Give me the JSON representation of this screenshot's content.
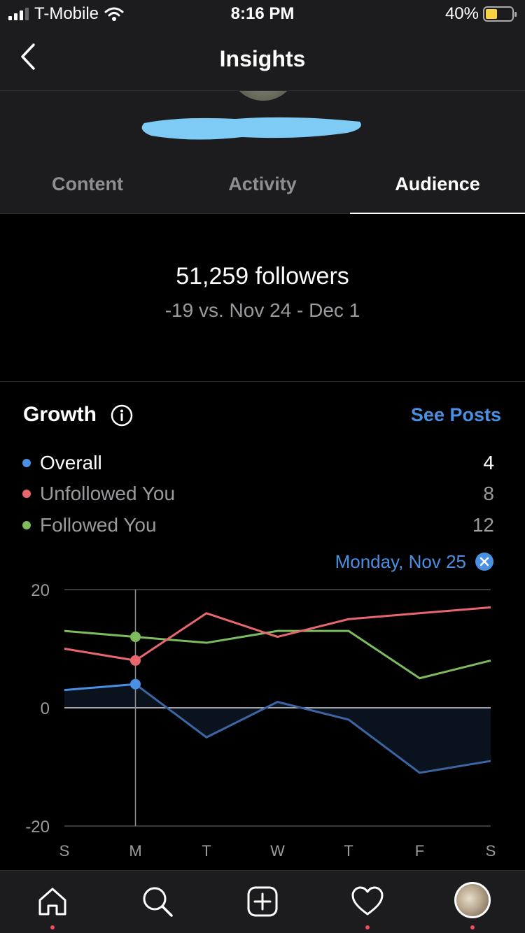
{
  "status_bar": {
    "carrier": "T-Mobile",
    "time": "8:16 PM",
    "battery": "40%"
  },
  "header": {
    "title": "Insights"
  },
  "tabs": [
    {
      "label": "Content"
    },
    {
      "label": "Activity"
    },
    {
      "label": "Audience"
    }
  ],
  "followers": {
    "count_text": "51,259 followers",
    "delta_text": "-19 vs. Nov 24 - Dec 1"
  },
  "growth": {
    "title": "Growth",
    "see_posts": "See Posts",
    "legend": [
      {
        "label": "Overall",
        "value": "4",
        "color": "#4a90e2"
      },
      {
        "label": "Unfollowed You",
        "value": "8",
        "color": "#e8676f"
      },
      {
        "label": "Followed You",
        "value": "12",
        "color": "#7dbb5c"
      }
    ],
    "selected_date": "Monday, Nov 25"
  },
  "chart_data": {
    "type": "line",
    "categories": [
      "S",
      "M",
      "T",
      "W",
      "T",
      "F",
      "S"
    ],
    "ylim": [
      -20,
      20
    ],
    "yticks": [
      "20",
      "0",
      "-20"
    ],
    "selected_index": 1,
    "series": [
      {
        "name": "Overall",
        "color": "#4a90e2",
        "values": [
          3,
          4,
          -5,
          1,
          -2,
          -11,
          -9
        ]
      },
      {
        "name": "Unfollowed You",
        "color": "#e8676f",
        "values": [
          10,
          8,
          16,
          12,
          15,
          16,
          17
        ]
      },
      {
        "name": "Followed You",
        "color": "#7dbb5c",
        "values": [
          13,
          12,
          11,
          13,
          13,
          5,
          8
        ]
      }
    ]
  },
  "tabbar": [
    {
      "icon": "home-icon"
    },
    {
      "icon": "search-icon"
    },
    {
      "icon": "new-post-icon"
    },
    {
      "icon": "heart-icon"
    },
    {
      "icon": "profile-avatar"
    }
  ]
}
